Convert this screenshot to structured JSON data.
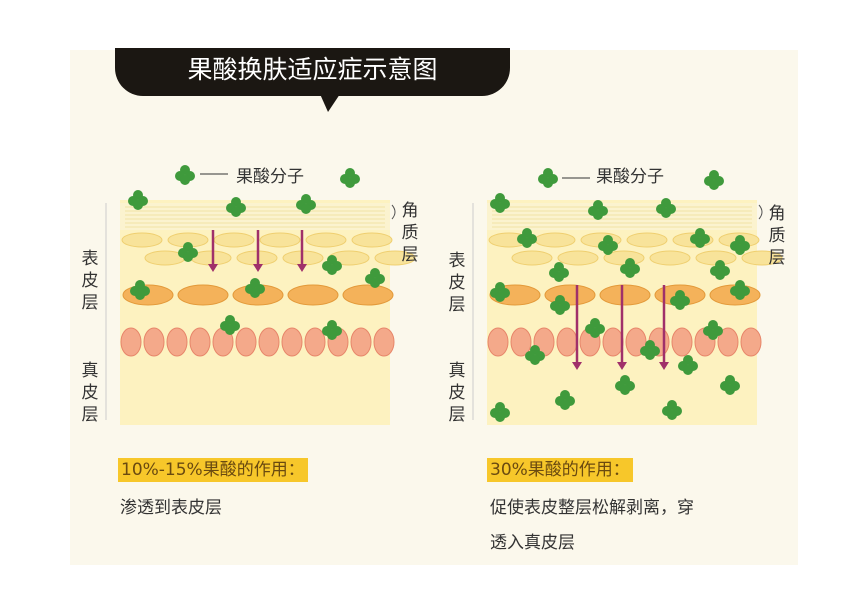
{
  "title": "果酸换肤适应症示意图",
  "legend_label": "果酸分子",
  "labels": {
    "stratum_corneum": "角质层",
    "epidermis": "表皮层",
    "dermis": "真皮层"
  },
  "left": {
    "heading": "10%-15%果酸的作用：",
    "desc": "渗透到表皮层"
  },
  "right": {
    "heading": "30%果酸的作用：",
    "desc_line1": "促使表皮整层松解剥离，穿",
    "desc_line2": "透入真皮层"
  },
  "colors": {
    "molecule": "#3f9a3c",
    "arrow": "#a0306a",
    "bubble": "#1b1712",
    "highlight": "#f7c72a"
  }
}
